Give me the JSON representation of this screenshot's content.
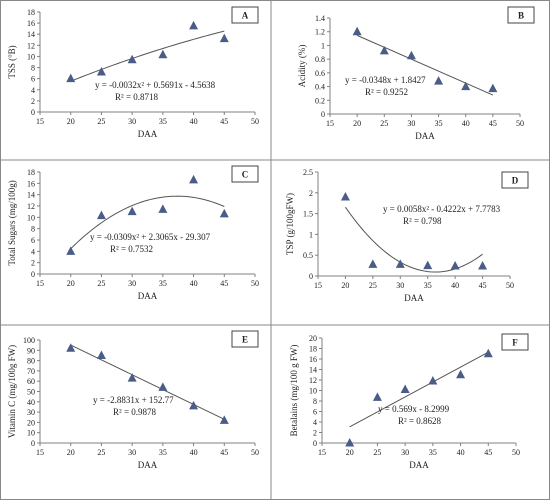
{
  "chart_data": [
    {
      "id": "A",
      "letter": "A",
      "type": "scatter",
      "xlabel": "DAA",
      "ylabel": "TSS (°B)",
      "xlim": [
        15,
        50
      ],
      "ylim": [
        0,
        18
      ],
      "xticks": [
        15,
        20,
        25,
        30,
        35,
        40,
        45,
        50
      ],
      "yticks": [
        0,
        2,
        4,
        6,
        8,
        10,
        12,
        14,
        16,
        18
      ],
      "x": [
        20,
        25,
        30,
        35,
        40,
        45
      ],
      "y": [
        6,
        7.2,
        9.4,
        10.3,
        15.5,
        13.2
      ],
      "trendline": {
        "kind": "poly2",
        "coefficients": [
          -0.0032,
          0.5691,
          -4.5638
        ],
        "x_range": [
          20,
          45
        ]
      },
      "equation": "y = -0.0032x² + 0.5691x - 4.5638",
      "r2": "R² = 0.8718",
      "legend": "none",
      "grid": false
    },
    {
      "id": "B",
      "letter": "B",
      "type": "scatter",
      "xlabel": "DAA",
      "ylabel": "Acidity (%)",
      "xlim": [
        15,
        50
      ],
      "ylim": [
        0,
        1.4
      ],
      "xticks": [
        15,
        20,
        25,
        30,
        35,
        40,
        45,
        50
      ],
      "yticks": [
        0,
        0.2,
        0.4,
        0.6,
        0.8,
        1,
        1.2,
        1.4
      ],
      "x": [
        20,
        25,
        30,
        35,
        40,
        45
      ],
      "y": [
        1.2,
        0.92,
        0.85,
        0.48,
        0.4,
        0.37
      ],
      "trendline": {
        "kind": "linear",
        "coefficients": [
          -0.0348,
          1.8427
        ],
        "x_range": [
          20,
          45
        ]
      },
      "equation": "y = -0.0348x + 1.8427",
      "r2": "R² = 0.9252",
      "legend": "none",
      "grid": false
    },
    {
      "id": "C",
      "letter": "C",
      "type": "scatter",
      "xlabel": "DAA",
      "ylabel": "Total Sugars (mg/100g)",
      "xlim": [
        15,
        50
      ],
      "ylim": [
        0,
        18
      ],
      "xticks": [
        15,
        20,
        25,
        30,
        35,
        40,
        45,
        50
      ],
      "yticks": [
        0,
        2,
        4,
        6,
        8,
        10,
        12,
        14,
        16,
        18
      ],
      "x": [
        20,
        25,
        30,
        35,
        40,
        45
      ],
      "y": [
        4,
        10.3,
        11,
        11.4,
        16.6,
        10.6
      ],
      "trendline": {
        "kind": "poly2",
        "coefficients": [
          -0.0309,
          2.3065,
          -29.307
        ],
        "x_range": [
          20,
          45
        ]
      },
      "equation": "y = -0.0309x² + 2.3065x - 29.307",
      "r2": "R² = 0.7532",
      "legend": "none",
      "grid": false
    },
    {
      "id": "D",
      "letter": "D",
      "type": "scatter",
      "xlabel": "DAA",
      "ylabel": "TSP (g/100gFW)",
      "xlim": [
        15,
        50
      ],
      "ylim": [
        0,
        2.5
      ],
      "xticks": [
        15,
        20,
        25,
        30,
        35,
        40,
        45,
        50
      ],
      "yticks": [
        0,
        0.5,
        1,
        1.5,
        2,
        2.5
      ],
      "x": [
        20,
        25,
        30,
        35,
        40,
        45
      ],
      "y": [
        1.9,
        0.28,
        0.28,
        0.25,
        0.24,
        0.24
      ],
      "trendline": {
        "kind": "poly2",
        "coefficients": [
          0.0058,
          -0.4222,
          7.7783
        ],
        "x_range": [
          20,
          45
        ]
      },
      "equation": "y = 0.0058x² - 0.4222x + 7.7783",
      "r2": "R² = 0.798",
      "legend": "none",
      "grid": false
    },
    {
      "id": "E",
      "letter": "E",
      "type": "scatter",
      "xlabel": "DAA",
      "ylabel": "Vitamin C (mg/100g FW)",
      "xlim": [
        15,
        50
      ],
      "ylim": [
        0,
        100
      ],
      "xticks": [
        15,
        20,
        25,
        30,
        35,
        40,
        45,
        50
      ],
      "yticks": [
        0,
        10,
        20,
        30,
        40,
        50,
        60,
        70,
        80,
        90,
        100
      ],
      "x": [
        20,
        25,
        30,
        35,
        40,
        45
      ],
      "y": [
        92,
        85,
        63,
        54,
        36,
        22
      ],
      "trendline": {
        "kind": "linear",
        "coefficients": [
          -2.8831,
          152.77
        ],
        "x_range": [
          20,
          45
        ]
      },
      "equation": "y = -2.8831x + 152.77",
      "r2": "R² = 0.9878",
      "legend": "none",
      "grid": false
    },
    {
      "id": "F",
      "letter": "F",
      "type": "scatter",
      "xlabel": "DAA",
      "ylabel": "Betalains (mg/100 g FW)",
      "xlim": [
        15,
        50
      ],
      "ylim": [
        0,
        20
      ],
      "xticks": [
        15,
        20,
        25,
        30,
        35,
        40,
        45,
        50
      ],
      "yticks": [
        0,
        2,
        4,
        6,
        8,
        10,
        12,
        14,
        16,
        18,
        20
      ],
      "x": [
        20,
        25,
        30,
        35,
        40,
        45
      ],
      "y": [
        0,
        8.7,
        10.2,
        11.8,
        13,
        17
      ],
      "trendline": {
        "kind": "linear",
        "coefficients": [
          0.569,
          -8.2999
        ],
        "x_range": [
          20,
          45
        ]
      },
      "equation": "y = 0.569x - 8.2999",
      "r2": "R² = 0.8628",
      "legend": "none",
      "grid": false
    }
  ],
  "colors": {
    "marker": "#4a5d86",
    "trendline": "#555555",
    "axis": "#808080",
    "border": "#888888"
  }
}
